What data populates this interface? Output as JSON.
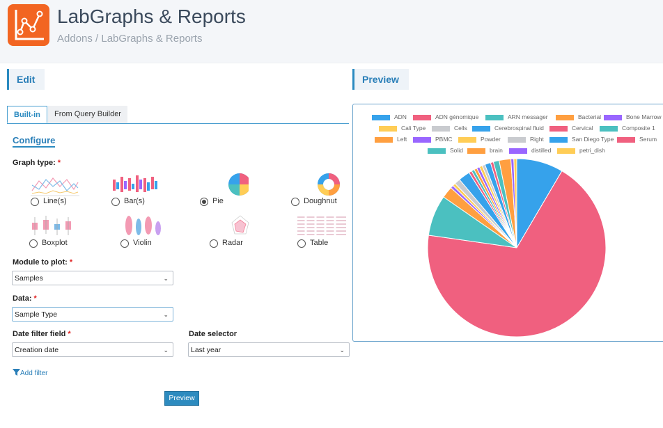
{
  "header": {
    "title": "LabGraphs & Reports",
    "breadcrumb": "Addons / LabGraphs & Reports"
  },
  "edit": {
    "heading": "Edit"
  },
  "preview": {
    "heading": "Preview",
    "button_label": "Preview"
  },
  "tabs": [
    {
      "label": "Built-in",
      "active": true
    },
    {
      "label": "From Query Builder",
      "active": false
    }
  ],
  "configure": {
    "heading": "Configure",
    "graph_type_label": "Graph type:",
    "required_mark": "*",
    "graph_types": [
      {
        "label": "Line(s)",
        "checked": false
      },
      {
        "label": "Bar(s)",
        "checked": false
      },
      {
        "label": "Pie",
        "checked": true
      },
      {
        "label": "Doughnut",
        "checked": false
      },
      {
        "label": "Boxplot",
        "checked": false
      },
      {
        "label": "Violin",
        "checked": false
      },
      {
        "label": "Radar",
        "checked": false
      },
      {
        "label": "Table",
        "checked": false
      }
    ],
    "module_label": "Module to plot:",
    "module_value": "Samples",
    "data_label": "Data:",
    "data_value": "Sample Type",
    "date_field_label": "Date filter field",
    "date_field_value": "Creation date",
    "date_selector_label": "Date selector",
    "date_selector_value": "Last year",
    "add_filter": "Add filter"
  },
  "colors": {
    "accent": "#2a8ac0",
    "logo": "#f26522",
    "required": "#e02424"
  },
  "chart_data": {
    "type": "pie",
    "categories": [
      "ADN",
      "ADN génomique",
      "ARN messager",
      "Bacterial",
      "Bone Marrow",
      "Cali Type",
      "Cells",
      "Cerebrospinal fluid",
      "Cervical",
      "Composite 1",
      "Left",
      "PBMC",
      "Powder",
      "Right",
      "San Diego Type",
      "Serum",
      "Solid",
      "brain",
      "distilled",
      "petri_dish"
    ],
    "colors": [
      "#36a2eb",
      "#f0607f",
      "#4bc0c0",
      "#ff9f40",
      "#9966ff",
      "#ffcd56",
      "#c9cbcf",
      "#36a2eb",
      "#f0607f",
      "#4bc0c0",
      "#ff9f40",
      "#9966ff",
      "#ffcd56",
      "#c9cbcf",
      "#36a2eb",
      "#f0607f",
      "#4bc0c0",
      "#ff9f40",
      "#9966ff",
      "#ffcd56"
    ],
    "values": [
      8,
      65,
      7,
      2,
      0.5,
      0.5,
      1,
      2,
      0.5,
      0.5,
      0.5,
      0.5,
      0.5,
      0.5,
      1,
      0.5,
      1,
      2,
      0.5,
      0.5
    ],
    "legend_position": "top"
  }
}
